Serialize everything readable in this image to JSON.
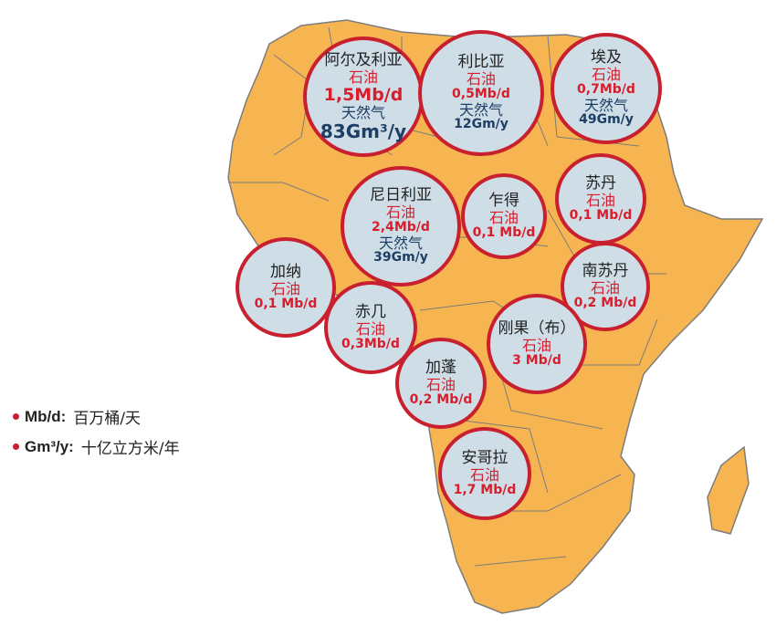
{
  "bubbles": {
    "algeria": {
      "country": "阿尔及利亚",
      "oil_label": "石油",
      "oil": "1,5Mb/d",
      "gas_label": "天然气",
      "gas": "83Gm³/y"
    },
    "libya": {
      "country": "利比亚",
      "oil_label": "石油",
      "oil": "0,5Mb/d",
      "gas_label": "天然气",
      "gas": "12Gm/y"
    },
    "egypt": {
      "country": "埃及",
      "oil_label": "石油",
      "oil": "0,7Mb/d",
      "gas_label": "天然气",
      "gas": "49Gm/y"
    },
    "nigeria": {
      "country": "尼日利亚",
      "oil_label": "石油",
      "oil": "2,4Mb/d",
      "gas_label": "天然气",
      "gas": "39Gm/y"
    },
    "chad": {
      "country": "乍得",
      "oil_label": "石油",
      "oil": "0,1 Mb/d"
    },
    "sudan": {
      "country": "苏丹",
      "oil_label": "石油",
      "oil": "0,1 Mb/d"
    },
    "ghana": {
      "country": "加纳",
      "oil_label": "石油",
      "oil": "0,1 Mb/d"
    },
    "south_sudan": {
      "country": "南苏丹",
      "oil_label": "石油",
      "oil": "0,2 Mb/d"
    },
    "eq_guinea": {
      "country": "赤几",
      "oil_label": "石油",
      "oil": "0,3Mb/d"
    },
    "congo": {
      "country": "刚果（布）",
      "oil_label": "石油",
      "oil": "3 Mb/d"
    },
    "gabon": {
      "country": "加蓬",
      "oil_label": "石油",
      "oil": "0,2 Mb/d"
    },
    "angola": {
      "country": "安哥拉",
      "oil_label": "石油",
      "oil": "1,7 Mb/d"
    }
  },
  "legend": [
    {
      "key": "Mb/d:",
      "text": "百万桶/天"
    },
    {
      "key": "Gm³/y:",
      "text": "十亿立方米/年"
    }
  ],
  "colors": {
    "land": "#f7b551",
    "border": "#7c7c7c",
    "bubble_fill": "#cfdde6",
    "bubble_ring": "#c8202f",
    "oil_text": "#d81e2c",
    "gas_text": "#1d3f66"
  }
}
